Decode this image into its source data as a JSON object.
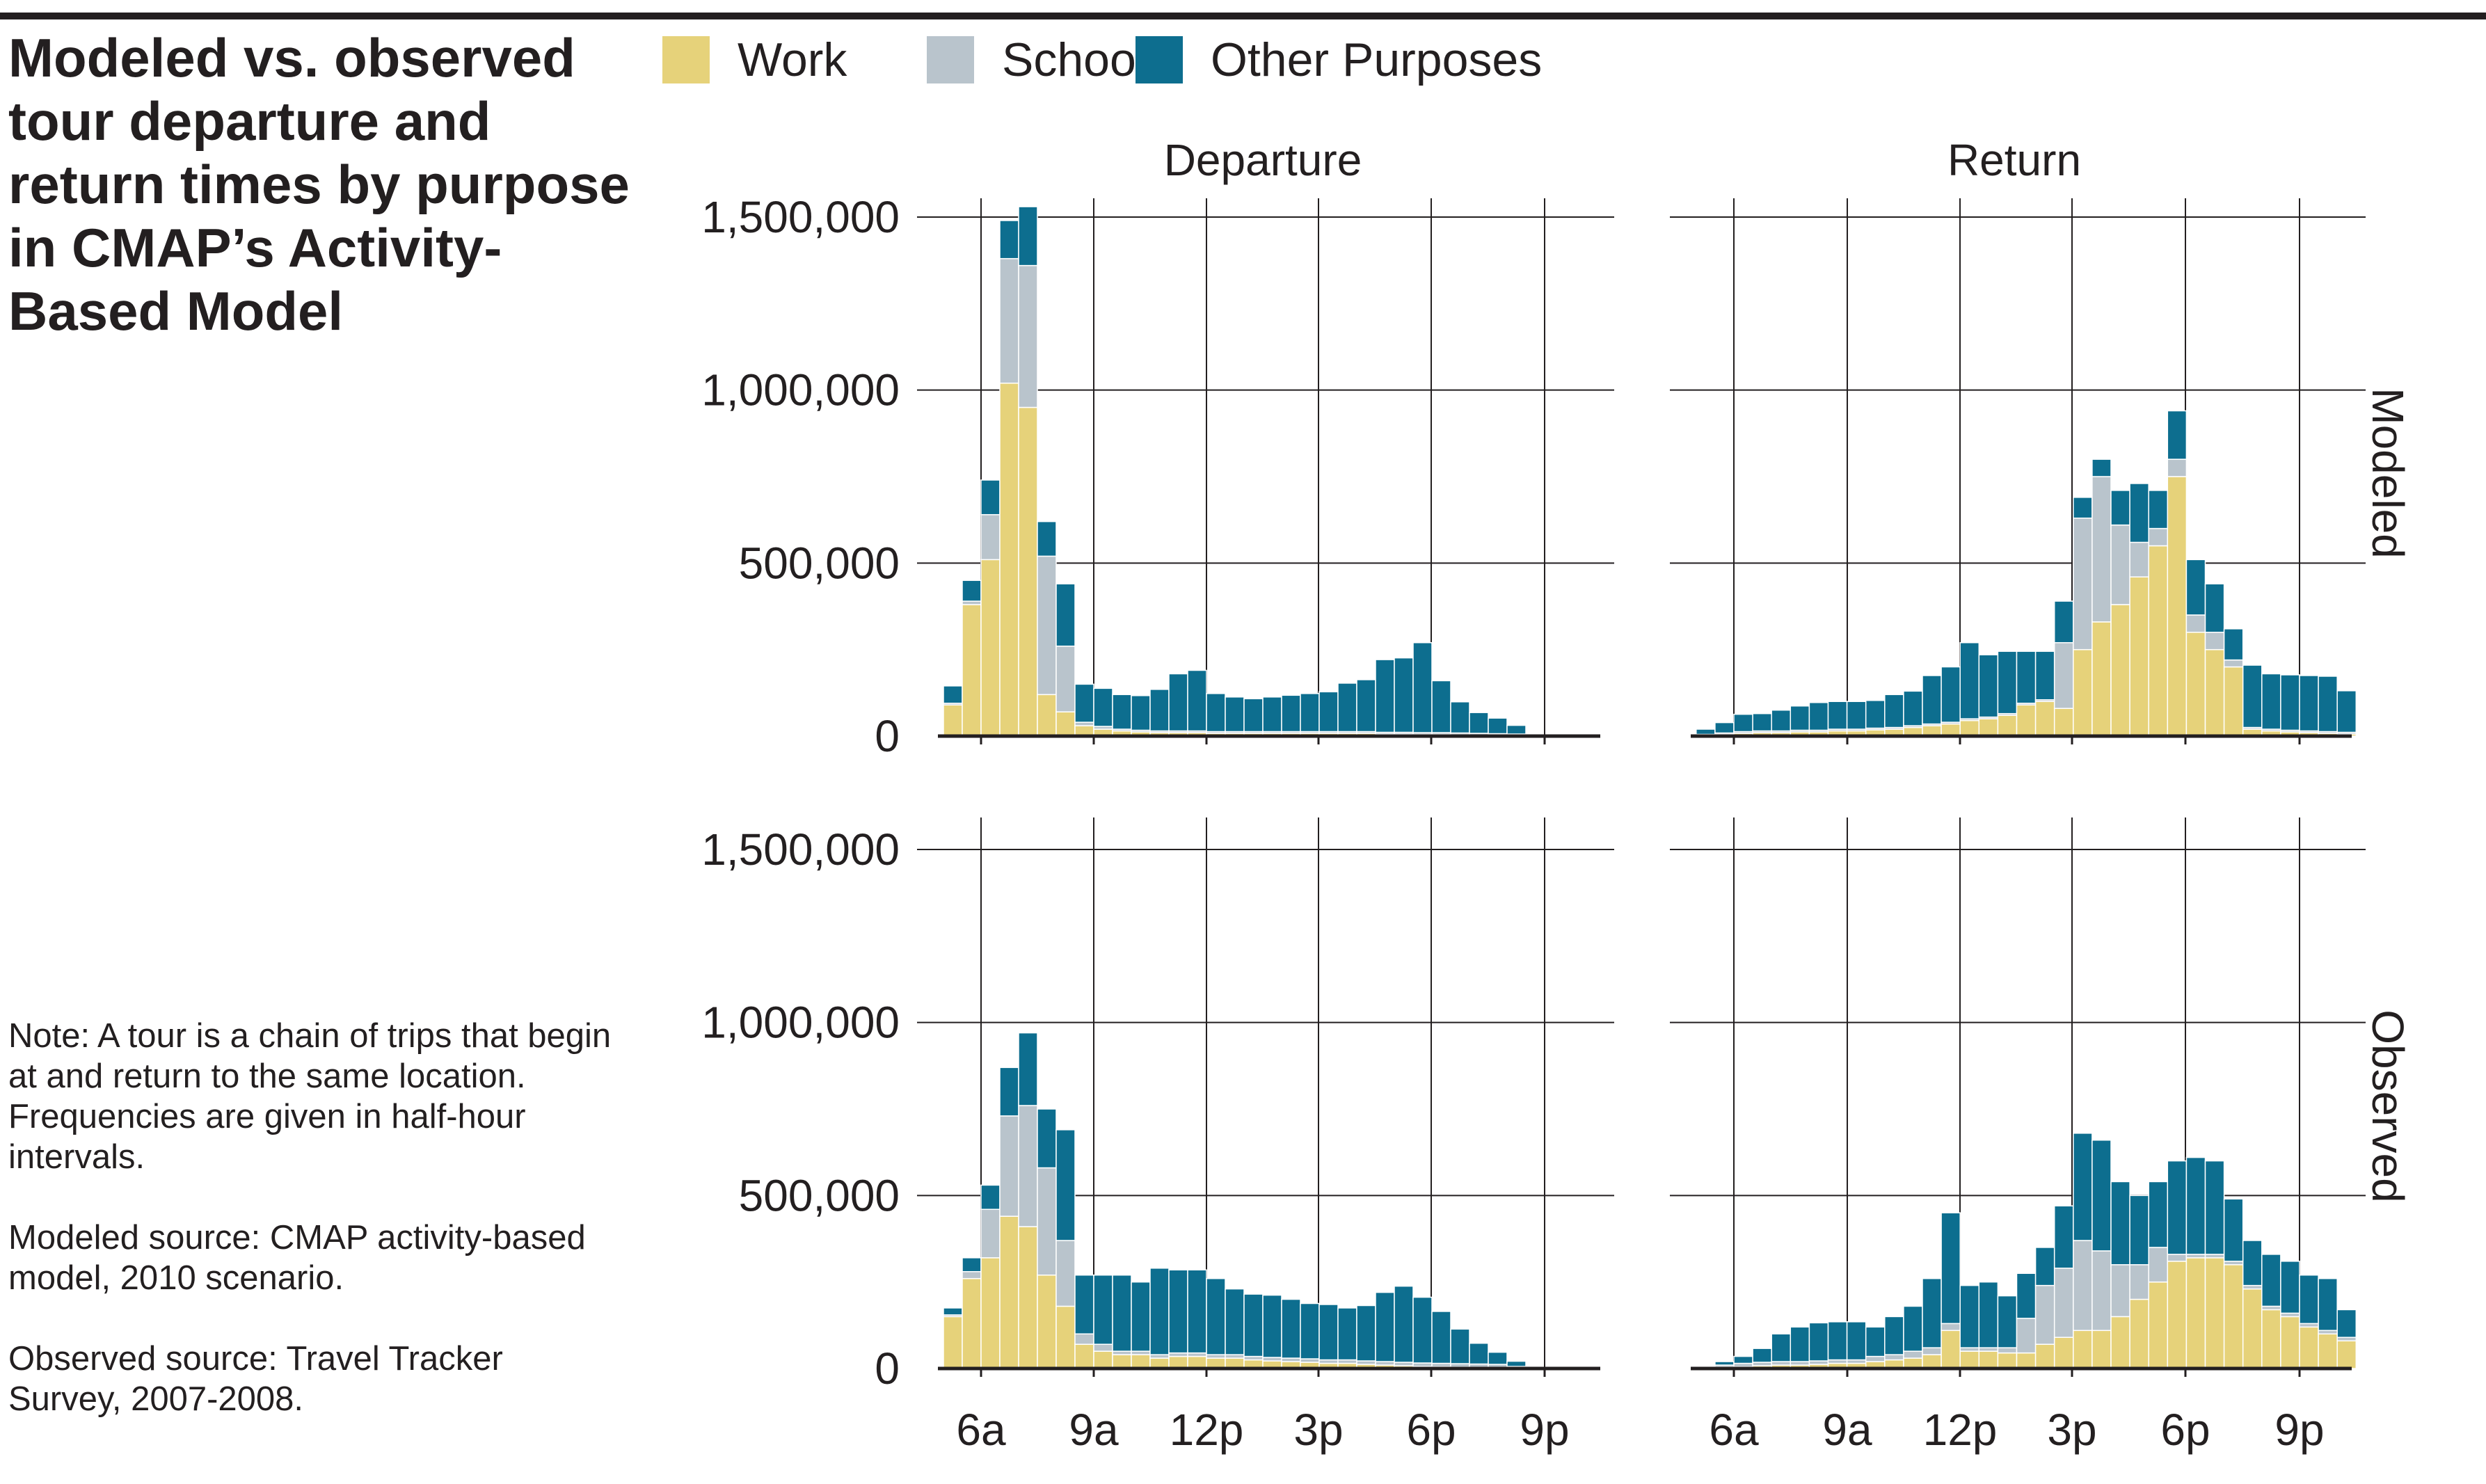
{
  "title": "Modeled vs. observed tour departure and return times by purpose in CMAP’s Activity-Based Model",
  "legend": [
    {
      "name": "Work",
      "color": "#e6d27a"
    },
    {
      "name": "School",
      "color": "#b9c4cc"
    },
    {
      "name": "Other Purposes",
      "color": "#0d6e8f"
    }
  ],
  "notes": {
    "definition": "Note: A tour is a chain of trips that begin at and return to the same location. Frequencies are given in half-hour intervals.",
    "modeled_source": "Modeled source: CMAP activity-based model, 2010 scenario.",
    "observed_source": "Observed source: Travel Tracker Survey, 2007-2008."
  },
  "chart_data": {
    "type": "bar",
    "stacked": true,
    "facet_columns": [
      "Departure",
      "Return"
    ],
    "facet_rows": [
      "Modeled",
      "Observed"
    ],
    "series_names": [
      "Work",
      "School",
      "Other Purposes"
    ],
    "y_ticks": [
      0,
      500000,
      1000000,
      1500000
    ],
    "y_tick_labels": [
      "0",
      "500,000",
      "1,000,000",
      "1,500,000"
    ],
    "ylim": [
      0,
      1550000
    ],
    "x_ticks": [
      6,
      9,
      12,
      15,
      18,
      21
    ],
    "x_tick_labels": [
      "6a",
      "9a",
      "12p",
      "3p",
      "6p",
      "9p"
    ],
    "grid": true,
    "legend_position": "top",
    "panels": [
      {
        "column": "Departure",
        "row": "Modeled",
        "start_hour": 5.25,
        "work": [
          90000,
          380000,
          510000,
          1020000,
          950000,
          120000,
          70000,
          30000,
          20000,
          15000,
          12000,
          10000,
          10000,
          10000,
          8000,
          8000,
          8000,
          8000,
          8000,
          8000,
          8000,
          8000,
          8000,
          6000,
          6000,
          5000,
          5000,
          4000,
          3000,
          2000,
          1000
        ],
        "school": [
          5000,
          10000,
          130000,
          360000,
          410000,
          400000,
          190000,
          10000,
          8000,
          5000,
          5000,
          5000,
          5000,
          5000,
          5000,
          5000,
          5000,
          5000,
          5000,
          5000,
          5000,
          5000,
          5000,
          5000,
          5000,
          5000,
          5000,
          5000,
          5000,
          5000,
          5000
        ],
        "other": [
          50000,
          60000,
          100000,
          110000,
          170000,
          100000,
          180000,
          110000,
          110000,
          100000,
          100000,
          120000,
          165000,
          175000,
          110000,
          100000,
          95000,
          100000,
          105000,
          110000,
          115000,
          140000,
          150000,
          210000,
          215000,
          260000,
          150000,
          90000,
          60000,
          45000,
          25000
        ]
      },
      {
        "column": "Return",
        "row": "Modeled",
        "start hour_note": "",
        "start_hour": 5.25,
        "work": [
          2000,
          5000,
          8000,
          10000,
          10000,
          12000,
          12000,
          15000,
          15000,
          18000,
          20000,
          25000,
          30000,
          35000,
          45000,
          50000,
          60000,
          90000,
          100000,
          80000,
          250000,
          330000,
          380000,
          460000,
          550000,
          750000,
          300000,
          250000,
          200000,
          20000,
          15000,
          12000,
          10000,
          8000,
          6000
        ],
        "school": [
          3000,
          4000,
          5000,
          5000,
          5000,
          5000,
          5000,
          5000,
          5000,
          5000,
          5000,
          5000,
          5000,
          5000,
          5000,
          5000,
          5000,
          5000,
          5000,
          190000,
          380000,
          420000,
          230000,
          100000,
          50000,
          50000,
          50000,
          50000,
          20000,
          5000,
          5000,
          5000,
          5000,
          5000,
          5000
        ],
        "other": [
          15000,
          30000,
          50000,
          50000,
          60000,
          70000,
          80000,
          80000,
          80000,
          80000,
          95000,
          100000,
          140000,
          160000,
          220000,
          180000,
          180000,
          150000,
          140000,
          120000,
          60000,
          50000,
          100000,
          170000,
          110000,
          140000,
          160000,
          140000,
          90000,
          180000,
          160000,
          160000,
          160000,
          160000,
          120000
        ]
      },
      {
        "column": "Departure",
        "row": "Observed",
        "start_hour": 5.25,
        "work": [
          150000,
          260000,
          320000,
          440000,
          410000,
          270000,
          180000,
          70000,
          50000,
          40000,
          40000,
          30000,
          35000,
          35000,
          30000,
          30000,
          25000,
          22000,
          20000,
          18000,
          15000,
          15000,
          12000,
          10000,
          8000,
          6000,
          5000,
          4000,
          3000,
          2000,
          1000
        ],
        "school": [
          5000,
          20000,
          140000,
          290000,
          350000,
          310000,
          190000,
          30000,
          20000,
          10000,
          10000,
          10000,
          10000,
          10000,
          10000,
          10000,
          10000,
          10000,
          10000,
          10000,
          10000,
          10000,
          10000,
          10000,
          10000,
          10000,
          10000,
          10000,
          10000,
          10000,
          5000
        ],
        "other": [
          20000,
          40000,
          70000,
          140000,
          210000,
          170000,
          320000,
          170000,
          200000,
          220000,
          200000,
          250000,
          240000,
          240000,
          220000,
          190000,
          180000,
          180000,
          170000,
          160000,
          160000,
          150000,
          160000,
          200000,
          220000,
          190000,
          150000,
          100000,
          60000,
          35000,
          15000
        ]
      },
      {
        "column": "Return",
        "row": "Observed",
        "start_hour": 5.25,
        "work": [
          2000,
          5000,
          5000,
          8000,
          10000,
          10000,
          12000,
          15000,
          15000,
          20000,
          25000,
          30000,
          40000,
          110000,
          50000,
          50000,
          45000,
          45000,
          70000,
          90000,
          110000,
          110000,
          150000,
          200000,
          250000,
          310000,
          320000,
          320000,
          300000,
          230000,
          170000,
          150000,
          120000,
          100000,
          80000
        ],
        "school": [
          3000,
          5000,
          10000,
          10000,
          10000,
          10000,
          10000,
          10000,
          10000,
          15000,
          15000,
          20000,
          20000,
          20000,
          10000,
          10000,
          15000,
          100000,
          170000,
          200000,
          260000,
          230000,
          150000,
          100000,
          100000,
          20000,
          10000,
          10000,
          10000,
          10000,
          10000,
          10000,
          10000,
          10000,
          10000
        ],
        "other": [
          0,
          10000,
          20000,
          40000,
          80000,
          100000,
          110000,
          110000,
          110000,
          85000,
          110000,
          130000,
          200000,
          320000,
          180000,
          190000,
          150000,
          130000,
          110000,
          180000,
          310000,
          320000,
          240000,
          200000,
          190000,
          270000,
          280000,
          270000,
          180000,
          130000,
          150000,
          150000,
          140000,
          150000,
          80000
        ]
      }
    ]
  }
}
